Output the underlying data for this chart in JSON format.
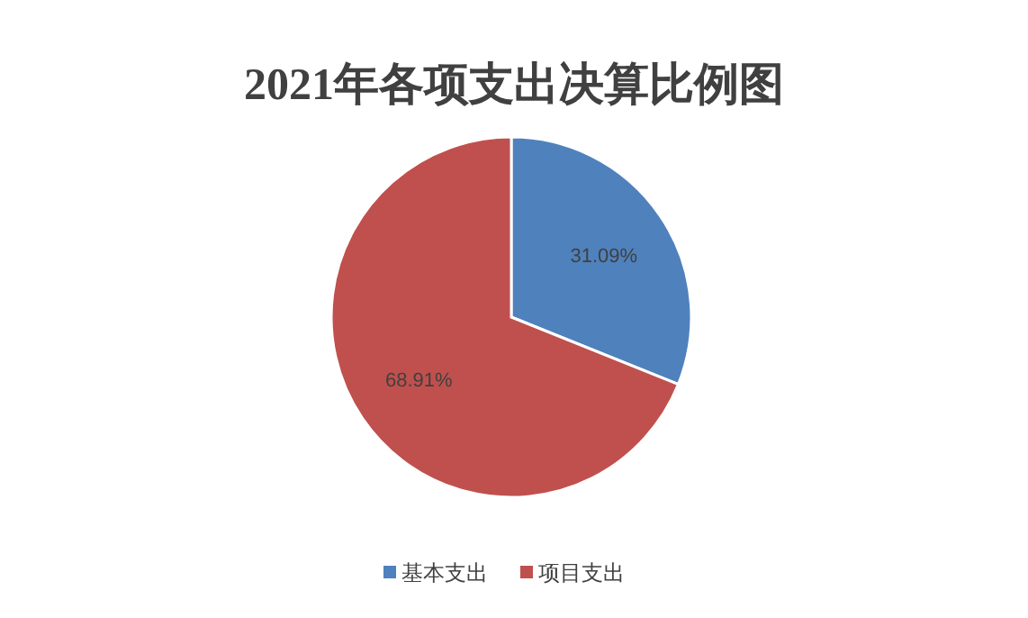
{
  "chart_data": {
    "type": "pie",
    "title": "2021年各项支出决算比例图",
    "categories": [
      "基本支出",
      "项目支出"
    ],
    "values": [
      31.09,
      68.91
    ],
    "colors": [
      "#4f81bd",
      "#c0504d"
    ],
    "value_labels": [
      "31.09%",
      "68.91%"
    ],
    "legend": "bottom"
  }
}
